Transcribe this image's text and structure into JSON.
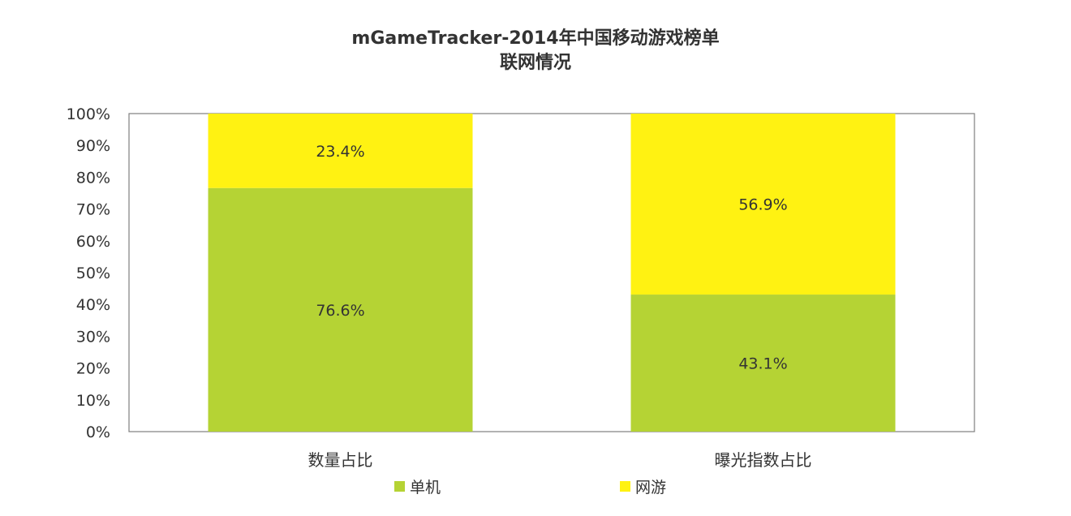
{
  "chart_data": {
    "type": "bar",
    "stacked": true,
    "title": "mGameTracker-2014年中国移动游戏榜单",
    "subtitle": "联网情况",
    "categories": [
      "数量占比",
      "曝光指数占比"
    ],
    "series": [
      {
        "name": "单机",
        "values": [
          76.6,
          43.1
        ],
        "labels": [
          "76.6%",
          "43.1%"
        ],
        "color": "#B5D334"
      },
      {
        "name": "网游",
        "values": [
          23.4,
          56.9
        ],
        "labels": [
          "23.4%",
          "56.9%"
        ],
        "color": "#FFF212"
      }
    ],
    "y_ticks": [
      "0%",
      "10%",
      "20%",
      "30%",
      "40%",
      "50%",
      "60%",
      "70%",
      "80%",
      "90%",
      "100%"
    ],
    "ylim": [
      0,
      100
    ],
    "grid": false,
    "legend_position": "bottom"
  }
}
